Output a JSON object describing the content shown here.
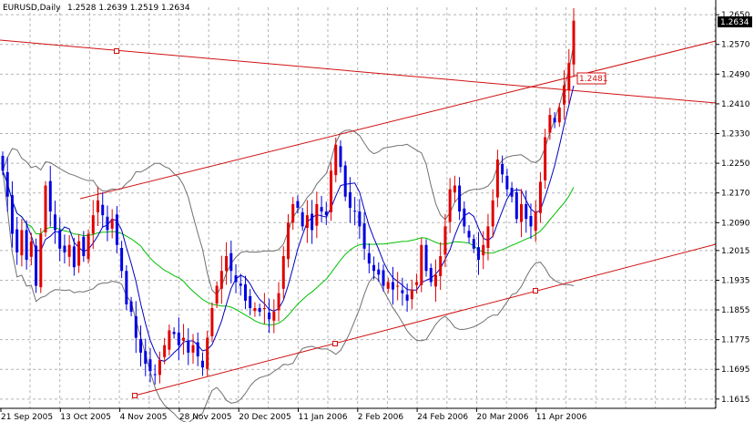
{
  "header": {
    "symbol_label": "EURUSD,Daily",
    "ohlc_label": "1.2528 1.2639 1.2519 1.2634"
  },
  "colors": {
    "background": "#ffffff",
    "grid": "#b4b4b4",
    "bull_candle": "#e00000",
    "bear_candle": "#0000e0",
    "ma_fast": "#0000c0",
    "ma_slow": "#00c000",
    "bollinger": "#707070",
    "trendline": "#d01010",
    "axis": "#000000"
  },
  "chart_data": {
    "type": "candlestick",
    "title": "EURUSD,Daily",
    "ylim": [
      1.159,
      1.267
    ],
    "grid": true,
    "y_ticks": [
      "1.2650",
      "1.2570",
      "1.2490",
      "1.2410",
      "1.2330",
      "1.2250",
      "1.2170",
      "1.2090",
      "1.2015",
      "1.1935",
      "1.1855",
      "1.1775",
      "1.1695",
      "1.1615"
    ],
    "x_ticks": [
      "21 Sep 2005",
      "13 Oct 2005",
      "4 Nov 2005",
      "28 Nov 2005",
      "20 Dec 2005",
      "11 Jan 2006",
      "2 Feb 2006",
      "24 Feb 2006",
      "20 Mar 2006",
      "11 Apr 2006"
    ],
    "current_price": "1.2634",
    "line_label": "1.2481",
    "closes": [
      1.223,
      1.216,
      1.206,
      1.201,
      1.207,
      1.199,
      1.204,
      1.192,
      1.206,
      1.219,
      1.212,
      1.207,
      1.202,
      1.201,
      1.203,
      1.197,
      1.204,
      1.2,
      1.206,
      1.211,
      1.215,
      1.211,
      1.207,
      1.21,
      1.203,
      1.196,
      1.187,
      1.185,
      1.178,
      1.174,
      1.171,
      1.169,
      1.168,
      1.172,
      1.176,
      1.18,
      1.179,
      1.176,
      1.178,
      1.174,
      1.176,
      1.173,
      1.17,
      1.178,
      1.186,
      1.192,
      1.196,
      1.2,
      1.196,
      1.193,
      1.192,
      1.188,
      1.186,
      1.186,
      1.185,
      1.186,
      1.183,
      1.185,
      1.19,
      1.2,
      1.209,
      1.214,
      1.213,
      1.208,
      1.211,
      1.207,
      1.214,
      1.212,
      1.211,
      1.223,
      1.23,
      1.224,
      1.216,
      1.213,
      1.212,
      1.208,
      1.202,
      1.198,
      1.196,
      1.195,
      1.192,
      1.193,
      1.191,
      1.192,
      1.19,
      1.188,
      1.191,
      1.193,
      1.203,
      1.196,
      1.193,
      1.195,
      1.2,
      1.208,
      1.218,
      1.219,
      1.212,
      1.208,
      1.205,
      1.202,
      1.199,
      1.203,
      1.208,
      1.215,
      1.226,
      1.222,
      1.218,
      1.216,
      1.21,
      1.214,
      1.21,
      1.208,
      1.212,
      1.22,
      1.232,
      1.238,
      1.236,
      1.24,
      1.246,
      1.252,
      1.2634
    ]
  }
}
